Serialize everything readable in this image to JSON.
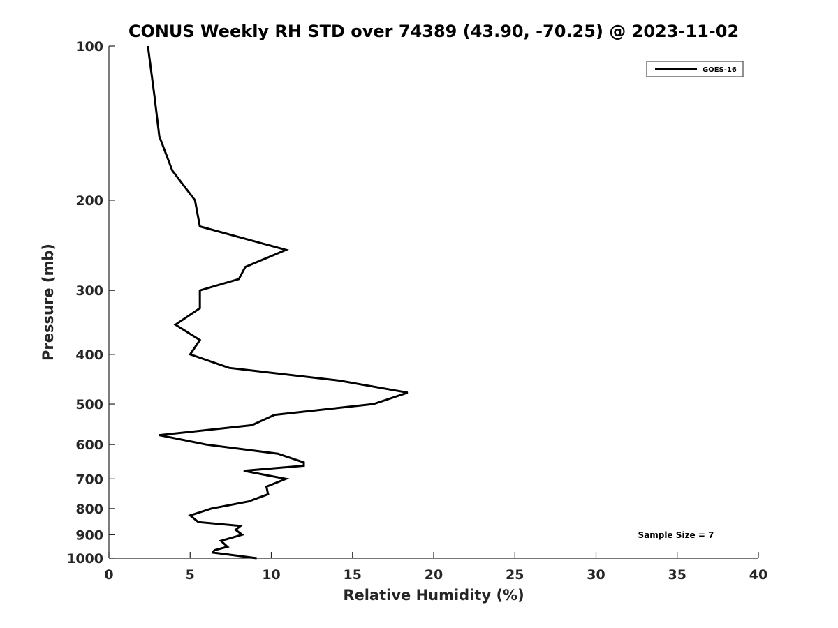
{
  "chart_data": {
    "type": "line",
    "title": "CONUS Weekly RH STD over 74389 (43.90, -70.25) @ 2023-11-02",
    "xlabel": "Relative Humidity (%)",
    "ylabel": "Pressure (mb)",
    "xlim": [
      0,
      40
    ],
    "ylim": [
      100,
      1000
    ],
    "y_scale": "log",
    "y_reversed": true,
    "x_ticks": [
      0,
      5,
      10,
      15,
      20,
      25,
      30,
      35,
      40
    ],
    "y_ticks": [
      100,
      200,
      300,
      400,
      500,
      600,
      700,
      800,
      900,
      1000
    ],
    "grid": false,
    "legend_position": "top-right",
    "annotation": "Sample Size = 7",
    "series": [
      {
        "name": "GOES-16",
        "color": "#000000",
        "points": [
          [
            2.4,
            100
          ],
          [
            2.8,
            125
          ],
          [
            3.1,
            150
          ],
          [
            3.9,
            175
          ],
          [
            5.3,
            200
          ],
          [
            5.6,
            225
          ],
          [
            10.9,
            250
          ],
          [
            8.4,
            270
          ],
          [
            8.0,
            285
          ],
          [
            5.6,
            300
          ],
          [
            5.6,
            325
          ],
          [
            4.1,
            350
          ],
          [
            5.6,
            375
          ],
          [
            5.0,
            400
          ],
          [
            7.4,
            425
          ],
          [
            14.2,
            450
          ],
          [
            18.4,
            475
          ],
          [
            16.3,
            500
          ],
          [
            10.2,
            525
          ],
          [
            8.8,
            550
          ],
          [
            3.1,
            575
          ],
          [
            6.0,
            600
          ],
          [
            10.4,
            625
          ],
          [
            12.0,
            650
          ],
          [
            12.0,
            660
          ],
          [
            8.3,
            675
          ],
          [
            10.9,
            700
          ],
          [
            9.7,
            725
          ],
          [
            9.8,
            750
          ],
          [
            8.6,
            775
          ],
          [
            6.3,
            800
          ],
          [
            5.0,
            825
          ],
          [
            5.5,
            850
          ],
          [
            8.1,
            865
          ],
          [
            7.8,
            880
          ],
          [
            8.2,
            900
          ],
          [
            6.9,
            925
          ],
          [
            7.3,
            950
          ],
          [
            6.5,
            965
          ],
          [
            6.4,
            975
          ],
          [
            9.1,
            1000
          ]
        ]
      }
    ]
  }
}
